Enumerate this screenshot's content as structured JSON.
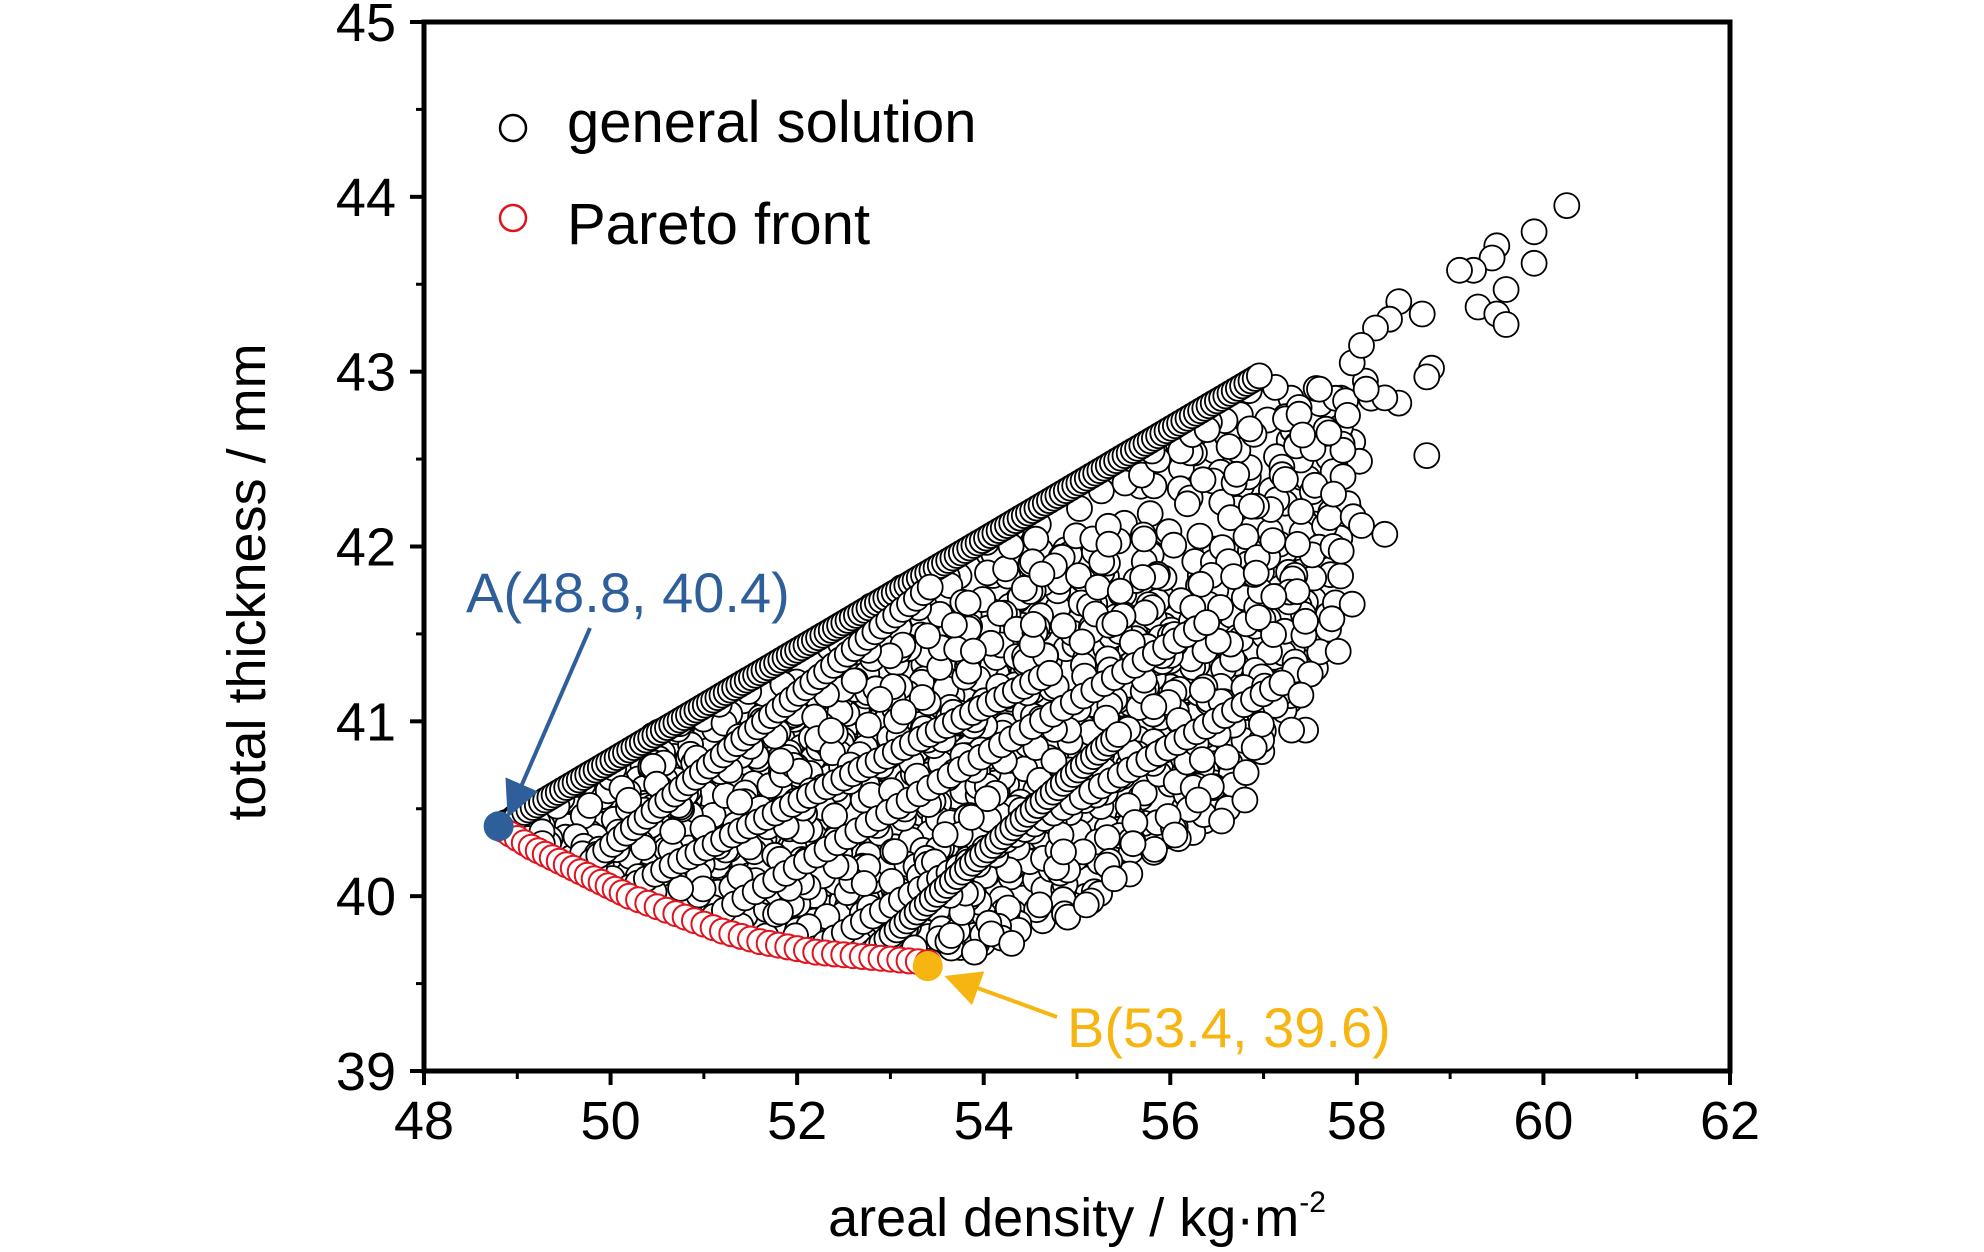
{
  "chart_data": {
    "type": "scatter",
    "title": "",
    "xlabel": "areal density / kg·m",
    "xlabel_superscript": "-2",
    "ylabel": "total thickness / mm",
    "xlim": [
      48,
      62
    ],
    "ylim": [
      39,
      45
    ],
    "x_ticks": [
      48,
      50,
      52,
      54,
      56,
      58,
      60,
      62
    ],
    "y_ticks": [
      39,
      40,
      41,
      42,
      43,
      44,
      45
    ],
    "grid": false,
    "legend_position": "top-left",
    "colors": {
      "general": "#000000",
      "pareto": "#e0141e",
      "point_a": "#2e5f9a",
      "point_b": "#f7b512"
    },
    "series": [
      {
        "name": "general solution",
        "marker": "open-circle",
        "color": "#000000",
        "region": {
          "upper_edge": [
            [
              48.8,
              40.4
            ],
            [
              57.0,
              43.0
            ]
          ],
          "lower_edge": [
            [
              48.8,
              40.4
            ],
            [
              50.0,
              40.05
            ],
            [
              51.0,
              39.82
            ],
            [
              52.0,
              39.7
            ],
            [
              53.0,
              39.66
            ],
            [
              53.8,
              39.66
            ]
          ],
          "right_edge": [
            [
              53.8,
              39.66
            ],
            [
              54.3,
              39.75
            ],
            [
              55.0,
              39.9
            ],
            [
              56.0,
              40.3
            ],
            [
              56.6,
              40.45
            ],
            [
              57.2,
              41.0
            ],
            [
              57.6,
              41.3
            ],
            [
              57.8,
              41.6
            ]
          ]
        },
        "outliers": [
          [
            60.25,
            43.95
          ],
          [
            59.9,
            43.8
          ],
          [
            59.9,
            43.62
          ],
          [
            59.5,
            43.72
          ],
          [
            59.45,
            43.65
          ],
          [
            59.25,
            43.58
          ],
          [
            59.1,
            43.58
          ],
          [
            59.6,
            43.47
          ],
          [
            59.3,
            43.37
          ],
          [
            59.5,
            43.33
          ],
          [
            59.6,
            43.27
          ],
          [
            58.45,
            43.4
          ],
          [
            58.7,
            43.33
          ],
          [
            58.35,
            43.3
          ],
          [
            58.2,
            43.25
          ],
          [
            58.8,
            43.02
          ],
          [
            58.75,
            42.97
          ],
          [
            58.45,
            42.82
          ],
          [
            58.3,
            42.85
          ],
          [
            58.75,
            42.52
          ],
          [
            58.3,
            42.07
          ],
          [
            58.05,
            42.12
          ],
          [
            57.95,
            41.67
          ],
          [
            57.8,
            41.4
          ],
          [
            57.5,
            41.27
          ],
          [
            57.4,
            41.15
          ],
          [
            57.45,
            40.95
          ],
          [
            57.3,
            40.95
          ],
          [
            56.8,
            40.55
          ],
          [
            56.55,
            40.43
          ],
          [
            57.55,
            42.35
          ],
          [
            57.4,
            42.2
          ],
          [
            57.75,
            42.3
          ],
          [
            57.85,
            42.55
          ],
          [
            57.9,
            42.75
          ],
          [
            58.1,
            42.9
          ],
          [
            57.7,
            42.65
          ],
          [
            57.6,
            42.9
          ],
          [
            57.95,
            43.05
          ],
          [
            58.05,
            43.15
          ],
          [
            54.9,
            39.88
          ],
          [
            55.1,
            39.95
          ],
          [
            54.6,
            39.95
          ],
          [
            54.3,
            39.73
          ],
          [
            53.9,
            39.68
          ],
          [
            55.4,
            40.1
          ],
          [
            55.6,
            40.3
          ],
          [
            56.05,
            40.35
          ],
          [
            56.3,
            40.55
          ],
          [
            56.9,
            40.85
          ]
        ]
      },
      {
        "name": "Pareto front",
        "marker": "open-circle",
        "color": "#e0141e",
        "x": [
          48.85,
          49.0,
          49.15,
          49.3,
          49.45,
          49.6,
          49.75,
          49.9,
          50.05,
          50.2,
          50.4,
          50.6,
          50.8,
          51.0,
          51.2,
          51.4,
          51.6,
          51.8,
          52.0,
          52.2,
          52.4,
          52.6,
          52.8,
          53.0,
          53.2,
          53.4
        ],
        "y": [
          40.38,
          40.33,
          40.28,
          40.24,
          40.2,
          40.16,
          40.12,
          40.08,
          40.04,
          40.0,
          39.96,
          39.92,
          39.88,
          39.84,
          39.8,
          39.77,
          39.74,
          39.72,
          39.7,
          39.68,
          39.67,
          39.66,
          39.65,
          39.64,
          39.63,
          39.62
        ]
      }
    ],
    "annotations": [
      {
        "id": "a",
        "text": "A(48.8, 40.4)",
        "x": 48.8,
        "y": 40.4,
        "color": "#2e5f9a"
      },
      {
        "id": "b",
        "text": "B(53.4, 39.6)",
        "x": 53.4,
        "y": 39.6,
        "color": "#f7b512"
      }
    ]
  }
}
